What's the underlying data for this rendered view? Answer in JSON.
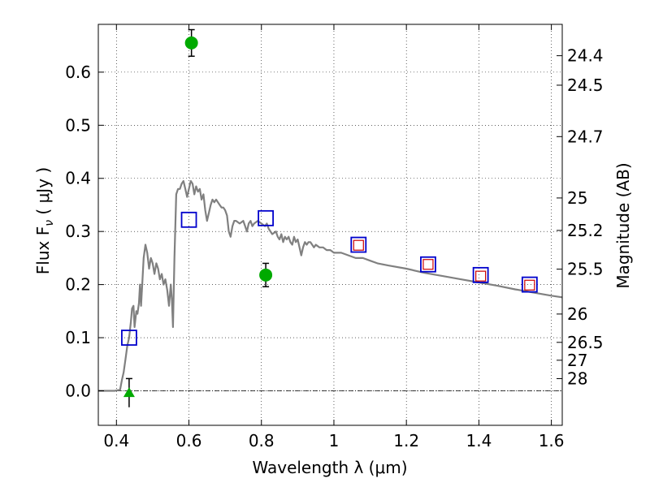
{
  "chart_data": {
    "type": "scatter",
    "xlabel": "Wavelength  λ (μm)",
    "ylabel": "Flux  F",
    "ylabel_sub": "ν",
    "ylabel_units": " ( μJy )",
    "y2label": "Magnitude (AB)",
    "xlim": [
      0.35,
      1.63
    ],
    "ylim": [
      -0.065,
      0.69
    ],
    "grid": true,
    "x_ticks": [
      0.4,
      0.6,
      0.8,
      1.0,
      1.2,
      1.4,
      1.6
    ],
    "x_tick_labels": [
      "0.4",
      "0.6",
      "0.8",
      "1",
      "1.2",
      "1.4",
      "1.6"
    ],
    "y_ticks": [
      0.0,
      0.1,
      0.2,
      0.3,
      0.4,
      0.5,
      0.6
    ],
    "y_tick_labels": [
      "0.0",
      "0.1",
      "0.2",
      "0.3",
      "0.4",
      "0.5",
      "0.6"
    ],
    "mag_ticks": [
      "24.4",
      "24.5",
      "24.7",
      "25",
      "25.2",
      "25.5",
      "26",
      "26.5",
      "27",
      "28"
    ],
    "mag_tick_labels": [
      "24.4",
      "24.5",
      "24.7",
      "25",
      "25.2",
      "25.5",
      "26",
      "26.5",
      "27",
      "28"
    ],
    "series": [
      {
        "marker": "line",
        "color": "#808080",
        "x": [
          0.35,
          0.395,
          0.41,
          0.415,
          0.42,
          0.425,
          0.43,
          0.435,
          0.44,
          0.443,
          0.447,
          0.45,
          0.455,
          0.458,
          0.462,
          0.465,
          0.468,
          0.472,
          0.475,
          0.48,
          0.485,
          0.49,
          0.495,
          0.5,
          0.505,
          0.51,
          0.515,
          0.52,
          0.525,
          0.53,
          0.535,
          0.54,
          0.545,
          0.55,
          0.553,
          0.556,
          0.56,
          0.565,
          0.57,
          0.575,
          0.58,
          0.585,
          0.59,
          0.595,
          0.6,
          0.605,
          0.61,
          0.615,
          0.62,
          0.625,
          0.63,
          0.635,
          0.64,
          0.645,
          0.65,
          0.655,
          0.66,
          0.665,
          0.67,
          0.675,
          0.68,
          0.685,
          0.69,
          0.695,
          0.7,
          0.705,
          0.71,
          0.715,
          0.72,
          0.725,
          0.73,
          0.74,
          0.75,
          0.755,
          0.76,
          0.765,
          0.77,
          0.775,
          0.78,
          0.79,
          0.8,
          0.81,
          0.815,
          0.82,
          0.83,
          0.84,
          0.845,
          0.85,
          0.855,
          0.86,
          0.865,
          0.87,
          0.875,
          0.88,
          0.885,
          0.89,
          0.895,
          0.9,
          0.905,
          0.91,
          0.915,
          0.92,
          0.925,
          0.93,
          0.935,
          0.94,
          0.945,
          0.95,
          0.96,
          0.97,
          0.98,
          0.99,
          1.0,
          1.02,
          1.04,
          1.06,
          1.08,
          1.1,
          1.12,
          1.15,
          1.2,
          1.25,
          1.3,
          1.35,
          1.4,
          1.45,
          1.5,
          1.55,
          1.6,
          1.63
        ],
        "y": [
          0.0,
          0.0,
          0.002,
          0.02,
          0.035,
          0.06,
          0.085,
          0.1,
          0.13,
          0.155,
          0.16,
          0.12,
          0.15,
          0.145,
          0.165,
          0.2,
          0.16,
          0.21,
          0.25,
          0.275,
          0.26,
          0.23,
          0.25,
          0.24,
          0.22,
          0.24,
          0.23,
          0.21,
          0.22,
          0.2,
          0.21,
          0.19,
          0.16,
          0.2,
          0.17,
          0.12,
          0.25,
          0.37,
          0.38,
          0.38,
          0.39,
          0.395,
          0.38,
          0.365,
          0.38,
          0.395,
          0.39,
          0.37,
          0.385,
          0.375,
          0.38,
          0.36,
          0.37,
          0.34,
          0.32,
          0.335,
          0.35,
          0.36,
          0.355,
          0.36,
          0.355,
          0.35,
          0.345,
          0.345,
          0.34,
          0.33,
          0.3,
          0.29,
          0.31,
          0.32,
          0.32,
          0.315,
          0.32,
          0.31,
          0.3,
          0.315,
          0.32,
          0.31,
          0.315,
          0.32,
          0.315,
          0.31,
          0.315,
          0.305,
          0.295,
          0.3,
          0.29,
          0.285,
          0.295,
          0.28,
          0.29,
          0.285,
          0.29,
          0.28,
          0.275,
          0.29,
          0.28,
          0.285,
          0.27,
          0.255,
          0.27,
          0.28,
          0.275,
          0.28,
          0.28,
          0.275,
          0.27,
          0.275,
          0.27,
          0.27,
          0.265,
          0.265,
          0.26,
          0.26,
          0.255,
          0.25,
          0.25,
          0.245,
          0.24,
          0.236,
          0.23,
          0.222,
          0.216,
          0.21,
          0.204,
          0.198,
          0.191,
          0.185,
          0.179,
          0.176
        ]
      },
      {
        "marker": "square",
        "color": "#0000cc",
        "x": [
          0.435,
          0.6,
          0.812,
          1.068,
          1.26,
          1.405,
          1.54
        ],
        "y": [
          0.1,
          0.322,
          0.325,
          0.275,
          0.238,
          0.218,
          0.2
        ]
      },
      {
        "marker": "small-square",
        "color": "#cc0000",
        "x": [
          1.068,
          1.26,
          1.405,
          1.54
        ],
        "y": [
          0.274,
          0.238,
          0.216,
          0.199
        ]
      },
      {
        "marker": "circle",
        "color": "#00aa00",
        "x": [
          0.607,
          0.812
        ],
        "y": [
          0.655,
          0.218
        ],
        "yerr": [
          0.025,
          0.022
        ]
      },
      {
        "marker": "triangle",
        "color": "#00aa00",
        "x": [
          0.435
        ],
        "y": [
          -0.004
        ],
        "yerr": [
          0.027
        ]
      }
    ],
    "hline": 0.0
  }
}
